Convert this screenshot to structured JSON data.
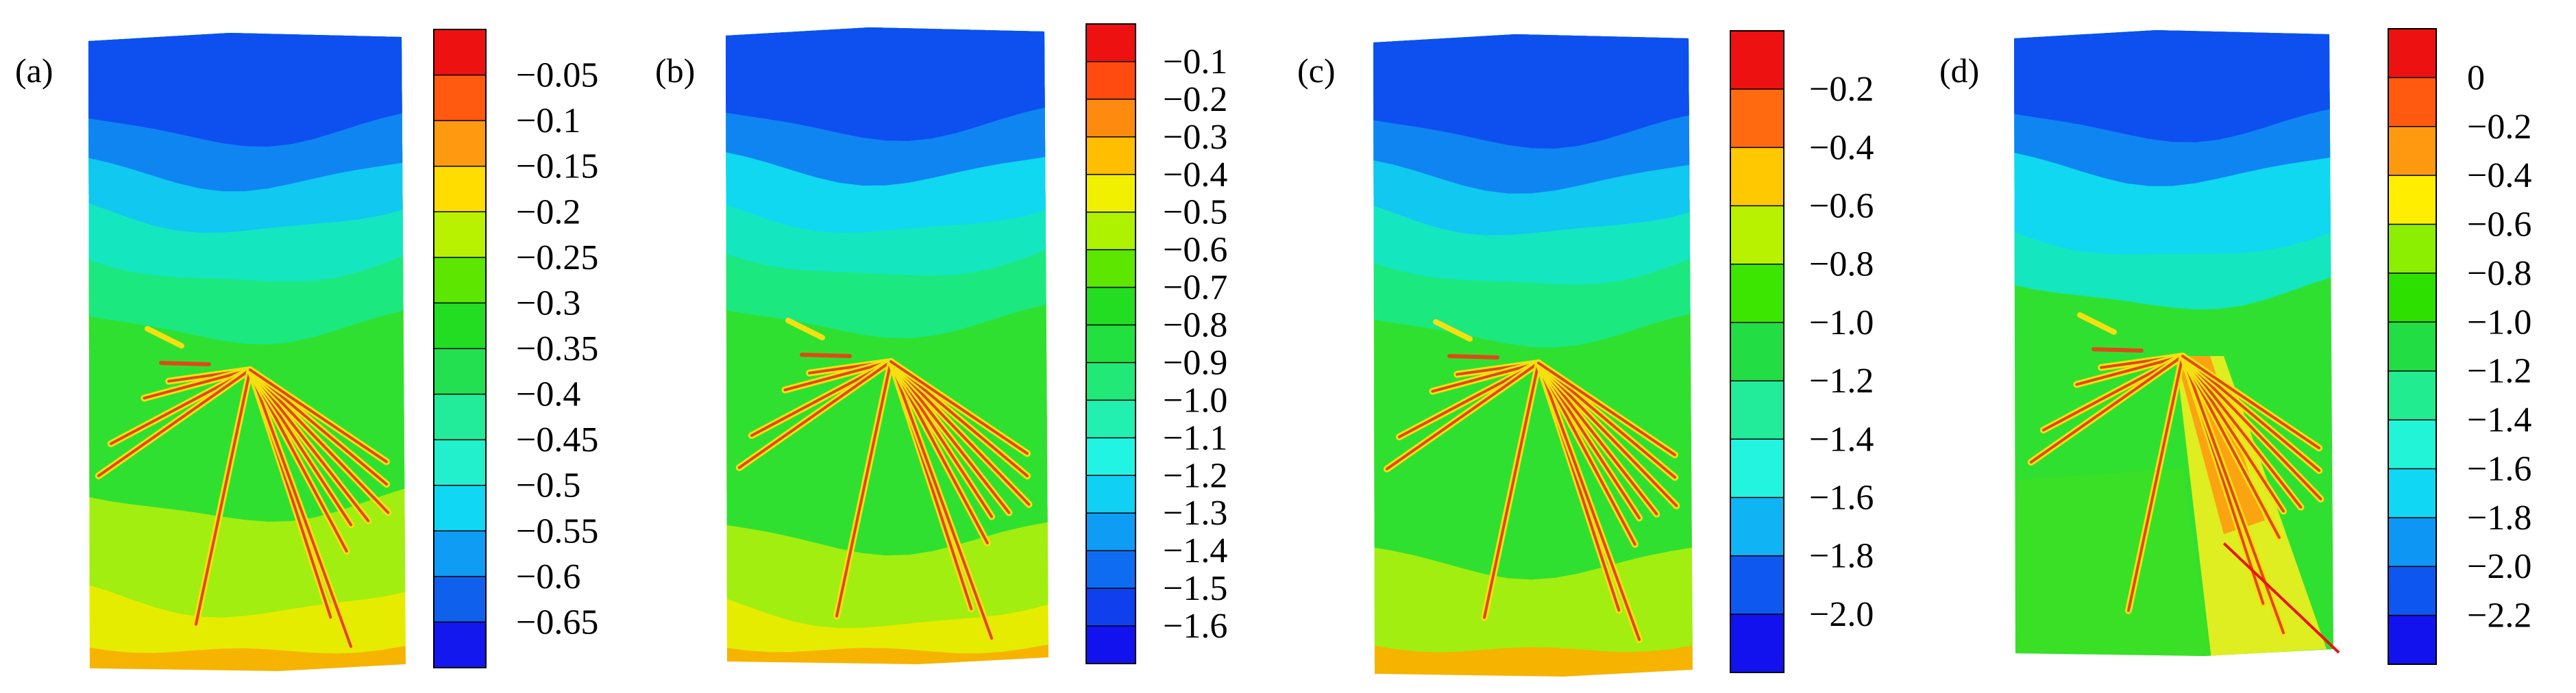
{
  "panels": [
    {
      "label": "(a)",
      "tick_labels": [
        "−0.05",
        "−0.1",
        "−0.15",
        "−0.2",
        "−0.25",
        "−0.3",
        "−0.35",
        "−0.4",
        "−0.45",
        "−0.5",
        "−0.55",
        "−0.6",
        "−0.65"
      ],
      "colors": [
        "#ee1111",
        "#ff5a10",
        "#ff9a10",
        "#ffdd00",
        "#b8f200",
        "#5ce600",
        "#22dd22",
        "#22e050",
        "#22ec9a",
        "#22f0cc",
        "#10d8f4",
        "#0e9cf4",
        "#1060ee",
        "#1218ee"
      ],
      "bands": [
        {
          "c": "#0e4ff0",
          "f": 0.0
        },
        {
          "c": "#0f85f2",
          "f": 0.13
        },
        {
          "c": "#10c8f0",
          "f": 0.2
        },
        {
          "c": "#14e6c0",
          "f": 0.27
        },
        {
          "c": "#1ce880",
          "f": 0.35
        },
        {
          "c": "#30e030",
          "f": 0.44
        },
        {
          "c": "#a2ee10",
          "f": 0.72
        },
        {
          "c": "#e6ec00",
          "f": 0.87
        },
        {
          "c": "#f6b300",
          "f": 0.96
        }
      ]
    },
    {
      "label": "(b)",
      "tick_labels": [
        "−0.1",
        "−0.2",
        "−0.3",
        "−0.4",
        "−0.5",
        "−0.6",
        "−0.7",
        "−0.8",
        "−0.9",
        "−1.0",
        "−1.1",
        "−1.2",
        "−1.3",
        "−1.4",
        "−1.5",
        "−1.6"
      ],
      "colors": [
        "#ee1111",
        "#ff4a10",
        "#ff8a10",
        "#ffbe00",
        "#f0f000",
        "#aef200",
        "#5ce600",
        "#22dd22",
        "#22e040",
        "#22e878",
        "#22f0b0",
        "#22f4e4",
        "#10d0f4",
        "#0e9cf4",
        "#0e6cf0",
        "#1040ee",
        "#1212ee"
      ],
      "bands": [
        {
          "c": "#0e4ff0",
          "f": 0.0
        },
        {
          "c": "#0f85f2",
          "f": 0.13
        },
        {
          "c": "#10d8f0",
          "f": 0.2
        },
        {
          "c": "#14e6c0",
          "f": 0.28
        },
        {
          "c": "#1ce880",
          "f": 0.35
        },
        {
          "c": "#30e030",
          "f": 0.44
        },
        {
          "c": "#a2ee10",
          "f": 0.78
        },
        {
          "c": "#e6ec00",
          "f": 0.9
        },
        {
          "c": "#f6b300",
          "f": 0.97
        }
      ]
    },
    {
      "label": "(c)",
      "tick_labels": [
        "−0.2",
        "−0.4",
        "−0.6",
        "−0.8",
        "−1.0",
        "−1.2",
        "−1.4",
        "−1.6",
        "−1.8",
        "−2.0"
      ],
      "colors": [
        "#ee1111",
        "#ff6a10",
        "#ffc800",
        "#b8f200",
        "#3ce600",
        "#22dd44",
        "#22ec9a",
        "#22f4e0",
        "#10b4f4",
        "#0e58f0",
        "#1212ee"
      ],
      "bands": [
        {
          "c": "#0e4ff0",
          "f": 0.0
        },
        {
          "c": "#0f85f2",
          "f": 0.13
        },
        {
          "c": "#10c8f0",
          "f": 0.2
        },
        {
          "c": "#14e6c0",
          "f": 0.27
        },
        {
          "c": "#1ce880",
          "f": 0.35
        },
        {
          "c": "#30e030",
          "f": 0.44
        },
        {
          "c": "#a2ee10",
          "f": 0.8
        },
        {
          "c": "#f6b300",
          "f": 0.95
        }
      ]
    },
    {
      "label": "(d)",
      "tick_labels": [
        "0",
        "−0.2",
        "−0.4",
        "−0.6",
        "−0.8",
        "−1.0",
        "−1.2",
        "−1.4",
        "−1.6",
        "−1.8",
        "−2.0",
        "−2.2"
      ],
      "colors": [
        "#ee1111",
        "#ff5a10",
        "#ff9a10",
        "#ffee00",
        "#8cee00",
        "#2ee000",
        "#22dd44",
        "#22ec90",
        "#22f4d8",
        "#10d8f4",
        "#0e96f4",
        "#0e56f0",
        "#1212ee"
      ],
      "bands": [
        {
          "c": "#0e4ff0",
          "f": 0.0
        },
        {
          "c": "#0f85f2",
          "f": 0.13
        },
        {
          "c": "#10d8f0",
          "f": 0.2
        },
        {
          "c": "#14e6c0",
          "f": 0.32
        },
        {
          "c": "#30e030",
          "f": 0.4
        }
      ]
    }
  ]
}
